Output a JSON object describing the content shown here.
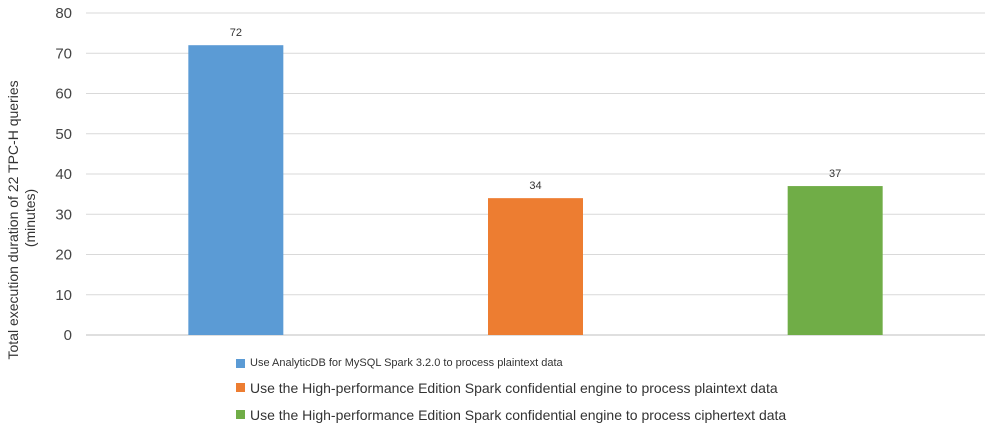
{
  "chart_data": {
    "type": "bar",
    "categories": [
      "Use AnalyticDB for MySQL Spark 3.2.0 to process plaintext data",
      "Use the High-performance Edition Spark confidential engine to process plaintext data",
      "Use the High-performance Edition Spark confidential engine to process ciphertext data"
    ],
    "values": [
      72,
      34,
      37
    ],
    "colors": [
      "#5B9BD5",
      "#ED7D31",
      "#70AD47"
    ],
    "ylabel_lines": [
      "Total execution duration of 22 TPC-H queries",
      "(minutes)"
    ],
    "ylim": [
      0,
      80
    ],
    "yticks": [
      0,
      10,
      20,
      30,
      40,
      50,
      60,
      70,
      80
    ],
    "grid": true,
    "legend_position": "bottom",
    "data_labels": true
  }
}
